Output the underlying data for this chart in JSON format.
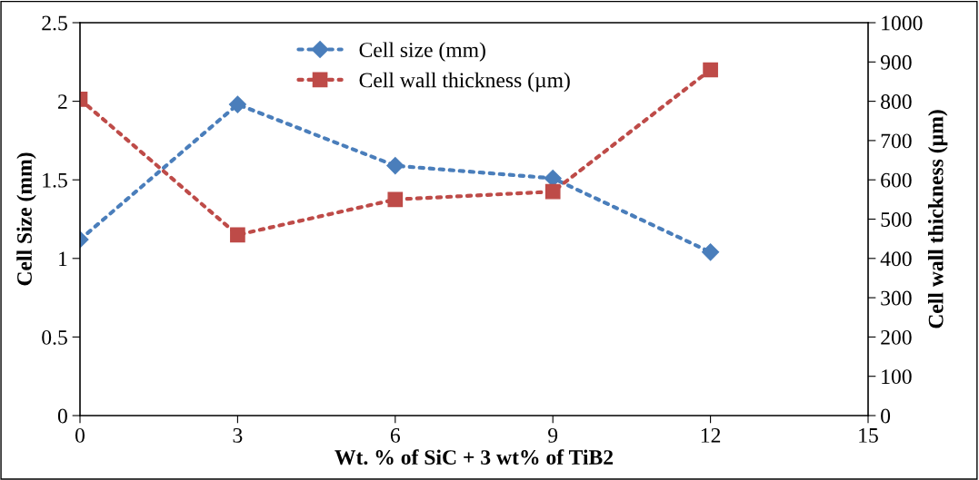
{
  "chart_data": {
    "type": "line",
    "xlabel": "Wt. % of SiC + 3 wt% of TiB2",
    "ylabel": "Cell Size (mm)",
    "y2label": "Cell wall thickness (µm)",
    "x": [
      0,
      3,
      6,
      9,
      12
    ],
    "series": [
      {
        "name": "Cell size (mm)",
        "color": "#4a7ebb",
        "values": [
          1.12,
          1.98,
          1.59,
          1.51,
          1.04
        ],
        "marker": "diamond"
      },
      {
        "name": "Cell wall thickness (µm)",
        "color": "#be4b48",
        "values": [
          805,
          460,
          550,
          570,
          880
        ],
        "marker": "square",
        "axis": "y2"
      }
    ],
    "xlim": [
      0,
      15
    ],
    "xticks": [
      0,
      3,
      6,
      9,
      12,
      15
    ],
    "ylim": [
      0,
      2.5
    ],
    "yticks": [
      0,
      0.5,
      1,
      1.5,
      2,
      2.5
    ],
    "y2lim": [
      0,
      1000
    ],
    "y2ticks": [
      0,
      100,
      200,
      300,
      400,
      500,
      600,
      700,
      800,
      900,
      1000
    ],
    "line_style": "dotted",
    "grid": false,
    "legend": "top"
  }
}
